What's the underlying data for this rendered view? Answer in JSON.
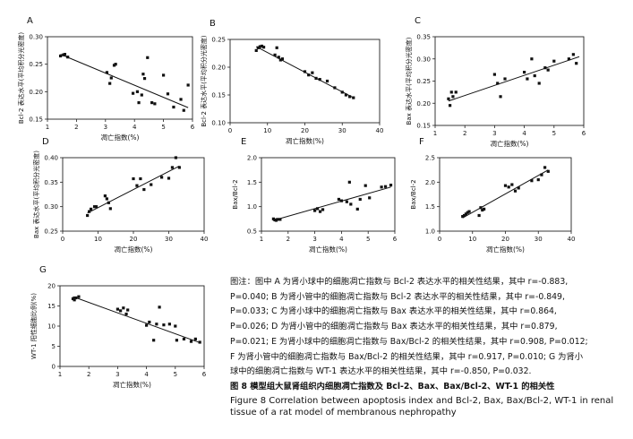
{
  "chart_data": [
    {
      "id": "A",
      "type": "scatter",
      "panel_label": "A",
      "ylabel": "Bcl-2 表达水平(平均积分光密度)",
      "xlabel": "凋亡指数(%)",
      "xlim": [
        1,
        6
      ],
      "ylim": [
        0.15,
        0.3
      ],
      "xticks": [
        1,
        2,
        3,
        4,
        5,
        6
      ],
      "yticks": [
        0.15,
        0.2,
        0.25,
        0.3
      ],
      "xtick_labels": [
        "1",
        "2",
        "3",
        "4",
        "5",
        "6"
      ],
      "ytick_labels": [
        "0.15",
        "0.20",
        "0.25",
        "0.30"
      ],
      "points": [
        [
          1.45,
          0.265
        ],
        [
          1.55,
          0.267
        ],
        [
          1.6,
          0.268
        ],
        [
          1.7,
          0.263
        ],
        [
          3.05,
          0.235
        ],
        [
          3.15,
          0.215
        ],
        [
          3.2,
          0.225
        ],
        [
          3.3,
          0.248
        ],
        [
          3.35,
          0.25
        ],
        [
          3.95,
          0.197
        ],
        [
          4.1,
          0.2
        ],
        [
          4.15,
          0.18
        ],
        [
          4.25,
          0.194
        ],
        [
          4.3,
          0.232
        ],
        [
          4.35,
          0.224
        ],
        [
          4.45,
          0.262
        ],
        [
          4.6,
          0.18
        ],
        [
          4.7,
          0.178
        ],
        [
          5.0,
          0.23
        ],
        [
          5.15,
          0.196
        ],
        [
          5.35,
          0.172
        ],
        [
          5.6,
          0.186
        ],
        [
          5.7,
          0.166
        ],
        [
          5.85,
          0.212
        ]
      ],
      "fit": [
        [
          1.45,
          0.268
        ],
        [
          5.85,
          0.171
        ]
      ]
    },
    {
      "id": "B",
      "type": "scatter",
      "panel_label": "B",
      "ylabel": "Bcl-2 表达水平(平均积分光密度)",
      "xlabel": "凋亡指数(%)",
      "xlim": [
        0,
        40
      ],
      "ylim": [
        0.1,
        0.25
      ],
      "xticks": [
        0,
        10,
        20,
        30,
        40
      ],
      "yticks": [
        0.1,
        0.15,
        0.2,
        0.25
      ],
      "xtick_labels": [
        "0",
        "10",
        "20",
        "30",
        "40"
      ],
      "ytick_labels": [
        "0.10",
        "0.15",
        "0.20",
        "0.25"
      ],
      "points": [
        [
          7,
          0.23
        ],
        [
          7.5,
          0.235
        ],
        [
          8,
          0.237
        ],
        [
          8.5,
          0.238
        ],
        [
          9,
          0.236
        ],
        [
          12,
          0.222
        ],
        [
          12.5,
          0.235
        ],
        [
          13,
          0.218
        ],
        [
          13.5,
          0.213
        ],
        [
          14,
          0.215
        ],
        [
          20,
          0.192
        ],
        [
          21,
          0.186
        ],
        [
          22,
          0.19
        ],
        [
          23,
          0.18
        ],
        [
          24,
          0.178
        ],
        [
          26,
          0.175
        ],
        [
          28,
          0.163
        ],
        [
          30,
          0.155
        ],
        [
          31,
          0.15
        ],
        [
          32,
          0.147
        ],
        [
          33,
          0.145
        ]
      ],
      "fit": [
        [
          7,
          0.237
        ],
        [
          33,
          0.145
        ]
      ]
    },
    {
      "id": "C",
      "type": "scatter",
      "panel_label": "C",
      "ylabel": "Bax 表达水平(平均积分光密度)",
      "xlabel": "凋亡指数(%)",
      "xlim": [
        1,
        6
      ],
      "ylim": [
        0.15,
        0.35
      ],
      "xticks": [
        1,
        2,
        3,
        4,
        5,
        6
      ],
      "yticks": [
        0.15,
        0.2,
        0.25,
        0.3,
        0.35
      ],
      "xtick_labels": [
        "1",
        "2",
        "3",
        "4",
        "5",
        "6"
      ],
      "ytick_labels": [
        "0.15",
        "0.20",
        "0.25",
        "0.30",
        "0.35"
      ],
      "points": [
        [
          1.45,
          0.21
        ],
        [
          1.5,
          0.195
        ],
        [
          1.55,
          0.225
        ],
        [
          1.6,
          0.215
        ],
        [
          1.7,
          0.225
        ],
        [
          3.0,
          0.265
        ],
        [
          3.1,
          0.245
        ],
        [
          3.2,
          0.215
        ],
        [
          3.35,
          0.255
        ],
        [
          4.0,
          0.27
        ],
        [
          4.1,
          0.255
        ],
        [
          4.25,
          0.3
        ],
        [
          4.35,
          0.262
        ],
        [
          4.5,
          0.245
        ],
        [
          4.7,
          0.28
        ],
        [
          4.8,
          0.275
        ],
        [
          5.0,
          0.295
        ],
        [
          5.5,
          0.3
        ],
        [
          5.65,
          0.31
        ],
        [
          5.75,
          0.29
        ]
      ],
      "fit": [
        [
          1.45,
          0.205
        ],
        [
          5.85,
          0.305
        ]
      ]
    },
    {
      "id": "D",
      "type": "scatter",
      "panel_label": "D",
      "ylabel": "Bax 表达水平(平均积分光密度)",
      "xlabel": "凋亡指数(%)",
      "xlim": [
        0,
        40
      ],
      "ylim": [
        0.25,
        0.4
      ],
      "xticks": [
        0,
        10,
        20,
        30,
        40
      ],
      "yticks": [
        0.25,
        0.3,
        0.35,
        0.4
      ],
      "xtick_labels": [
        "0",
        "10",
        "20",
        "30",
        "40"
      ],
      "ytick_labels": [
        "0.25",
        "0.30",
        "0.35",
        "0.40"
      ],
      "points": [
        [
          7,
          0.282
        ],
        [
          7.5,
          0.29
        ],
        [
          8,
          0.295
        ],
        [
          9,
          0.3
        ],
        [
          9.5,
          0.3
        ],
        [
          12,
          0.322
        ],
        [
          12.5,
          0.316
        ],
        [
          13,
          0.308
        ],
        [
          13.5,
          0.296
        ],
        [
          20,
          0.357
        ],
        [
          21,
          0.343
        ],
        [
          22,
          0.357
        ],
        [
          23,
          0.335
        ],
        [
          25,
          0.345
        ],
        [
          28,
          0.36
        ],
        [
          30,
          0.358
        ],
        [
          31,
          0.38
        ],
        [
          32,
          0.4
        ],
        [
          33,
          0.38
        ]
      ],
      "fit": [
        [
          7,
          0.287
        ],
        [
          33,
          0.383
        ]
      ]
    },
    {
      "id": "E",
      "type": "scatter",
      "panel_label": "E",
      "ylabel": "Bax/Bcl-2",
      "xlabel": "凋亡指数(%)",
      "xlim": [
        1,
        6
      ],
      "ylim": [
        0.5,
        2.0
      ],
      "xticks": [
        1,
        2,
        3,
        4,
        5,
        6
      ],
      "yticks": [
        0.5,
        1.0,
        1.5,
        2.0
      ],
      "xtick_labels": [
        "1",
        "2",
        "3",
        "4",
        "5",
        "6"
      ],
      "ytick_labels": [
        "0.5",
        "1.0",
        "1.5",
        "2.0"
      ],
      "points": [
        [
          1.45,
          0.75
        ],
        [
          1.5,
          0.73
        ],
        [
          1.55,
          0.72
        ],
        [
          1.6,
          0.74
        ],
        [
          1.7,
          0.74
        ],
        [
          3.0,
          0.92
        ],
        [
          3.1,
          0.96
        ],
        [
          3.2,
          0.9
        ],
        [
          3.3,
          0.94
        ],
        [
          3.9,
          1.15
        ],
        [
          4.0,
          1.12
        ],
        [
          4.2,
          1.1
        ],
        [
          4.3,
          1.5
        ],
        [
          4.35,
          1.05
        ],
        [
          4.6,
          0.95
        ],
        [
          4.7,
          1.15
        ],
        [
          4.9,
          1.43
        ],
        [
          5.05,
          1.18
        ],
        [
          5.5,
          1.4
        ],
        [
          5.65,
          1.41
        ],
        [
          5.85,
          1.44
        ]
      ],
      "fit": [
        [
          1.45,
          0.72
        ],
        [
          5.85,
          1.4
        ]
      ]
    },
    {
      "id": "F",
      "type": "scatter",
      "panel_label": "F",
      "ylabel": "Bax/Bcl-2",
      "xlabel": "凋亡指数(%)",
      "xlim": [
        0,
        40
      ],
      "ylim": [
        1.0,
        2.5
      ],
      "xticks": [
        0,
        10,
        20,
        30,
        40
      ],
      "yticks": [
        1.0,
        1.5,
        2.0,
        2.5
      ],
      "xtick_labels": [
        "0",
        "10",
        "20",
        "30",
        "40"
      ],
      "ytick_labels": [
        "1.0",
        "1.5",
        "2.0",
        "2.5"
      ],
      "points": [
        [
          7,
          1.3
        ],
        [
          7.5,
          1.32
        ],
        [
          8,
          1.35
        ],
        [
          8.5,
          1.38
        ],
        [
          9,
          1.4
        ],
        [
          12,
          1.32
        ],
        [
          12.5,
          1.48
        ],
        [
          13,
          1.43
        ],
        [
          13.5,
          1.45
        ],
        [
          20,
          1.93
        ],
        [
          21,
          1.9
        ],
        [
          22,
          1.95
        ],
        [
          23,
          1.82
        ],
        [
          24,
          1.88
        ],
        [
          28,
          2.03
        ],
        [
          30,
          2.05
        ],
        [
          31,
          2.15
        ],
        [
          32,
          2.3
        ],
        [
          33,
          2.22
        ]
      ],
      "fit": [
        [
          7,
          1.27
        ],
        [
          33,
          2.25
        ]
      ]
    },
    {
      "id": "G",
      "type": "scatter",
      "panel_label": "G",
      "ylabel": "WT-1 阳性细胞比例(%)",
      "xlabel": "凋亡指数(%)",
      "xlim": [
        1,
        6
      ],
      "ylim": [
        0,
        20
      ],
      "xticks": [
        1,
        2,
        3,
        4,
        5,
        6
      ],
      "yticks": [
        0,
        5,
        10,
        15,
        20
      ],
      "xtick_labels": [
        "1",
        "2",
        "3",
        "4",
        "5",
        "6"
      ],
      "ytick_labels": [
        "0",
        "5",
        "10",
        "15",
        "20"
      ],
      "points": [
        [
          1.45,
          16.8
        ],
        [
          1.5,
          16.5
        ],
        [
          1.55,
          17.0
        ],
        [
          1.65,
          17.3
        ],
        [
          3.0,
          14.2
        ],
        [
          3.1,
          13.8
        ],
        [
          3.2,
          14.5
        ],
        [
          3.3,
          13.0
        ],
        [
          3.35,
          14.0
        ],
        [
          4.0,
          10.2
        ],
        [
          4.1,
          11.0
        ],
        [
          4.25,
          6.5
        ],
        [
          4.35,
          10.5
        ],
        [
          4.45,
          14.7
        ],
        [
          4.6,
          10.3
        ],
        [
          4.8,
          10.5
        ],
        [
          5.0,
          10.0
        ],
        [
          5.05,
          6.5
        ],
        [
          5.3,
          6.8
        ],
        [
          5.55,
          6.2
        ],
        [
          5.7,
          6.8
        ],
        [
          5.85,
          6.0
        ]
      ],
      "fit": [
        [
          1.45,
          17.3
        ],
        [
          5.85,
          5.9
        ]
      ]
    }
  ],
  "caption": {
    "lines": [
      "图注：图中 A 为肾小球中的细胞凋亡指数与 Bcl-2 表达水平的相关性结果，其中 r=-0.883,",
      "P=0.040; B 为肾小管中的细胞凋亡指数与 Bcl-2 表达水平的相关性结果，其中 r=-0.849,",
      "P=0.033; C 为肾小球中的细胞凋亡指数与 Bax 表达水平的相关性结果，其中 r=0.864,",
      "P=0.026; D 为肾小管中的细胞凋亡指数与 Bax 表达水平的相关性结果，其中 r=0.879,",
      "P=0.021; E 为肾小球中的细胞凋亡指数与 Bax/Bcl-2 的相关性结果，其中 r=0.908, P=0.012;",
      "F 为肾小管中的细胞凋亡指数与 Bax/Bcl-2 的相关性结果，其中 r=0.917, P=0.010; G 为肾小",
      "球中的细胞凋亡指数与 WT-1 表达水平的相关性结果，其中 r=-0.850, P=0.032."
    ],
    "title_cn": "图 8   模型组大鼠肾组织内细胞凋亡指数及 Bcl-2、Bax、Bax/Bcl-2、WT-1 的相关性",
    "title_en_1": "Figure 8    Correlation between apoptosis index and Bcl-2, Bax, Bax/Bcl-2, WT-1 in renal",
    "title_en_2": "tissue of a rat model of membranous nephropathy"
  }
}
